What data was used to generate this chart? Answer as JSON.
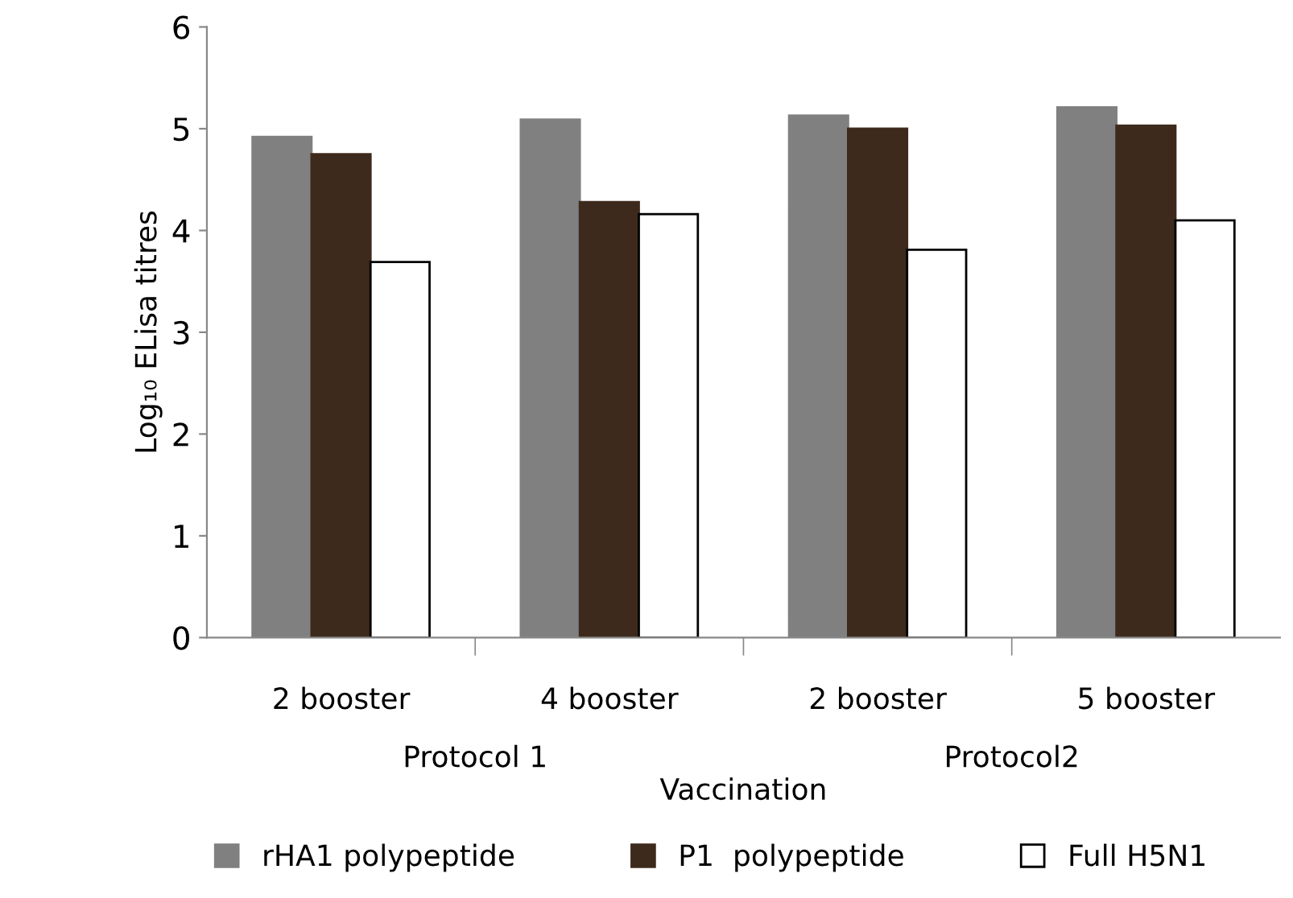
{
  "chart_data": {
    "type": "bar",
    "xlabel": "Vaccination",
    "ylabel": "Log₁₀ ELisa titres",
    "categories": [
      "2 booster",
      "4 booster",
      "2 booster",
      "5 booster"
    ],
    "series": [
      {
        "name": "rHA1 polypeptide",
        "color": "#808080",
        "values": [
          4.92,
          5.09,
          5.13,
          5.21
        ]
      },
      {
        "name": "P1  polypeptide",
        "color": "#3d2a1c",
        "values": [
          4.75,
          4.28,
          5.0,
          5.03
        ]
      },
      {
        "name": "Full H5N1",
        "color": "#ffffff",
        "values": [
          3.69,
          4.16,
          3.81,
          4.1
        ]
      }
    ],
    "annotations": [
      "Protocol 1",
      "Protocol2"
    ],
    "ylim": [
      0,
      6
    ],
    "yticks": [
      0,
      1,
      2,
      3,
      4,
      5,
      6
    ],
    "grid": false,
    "legend": "bottom"
  }
}
